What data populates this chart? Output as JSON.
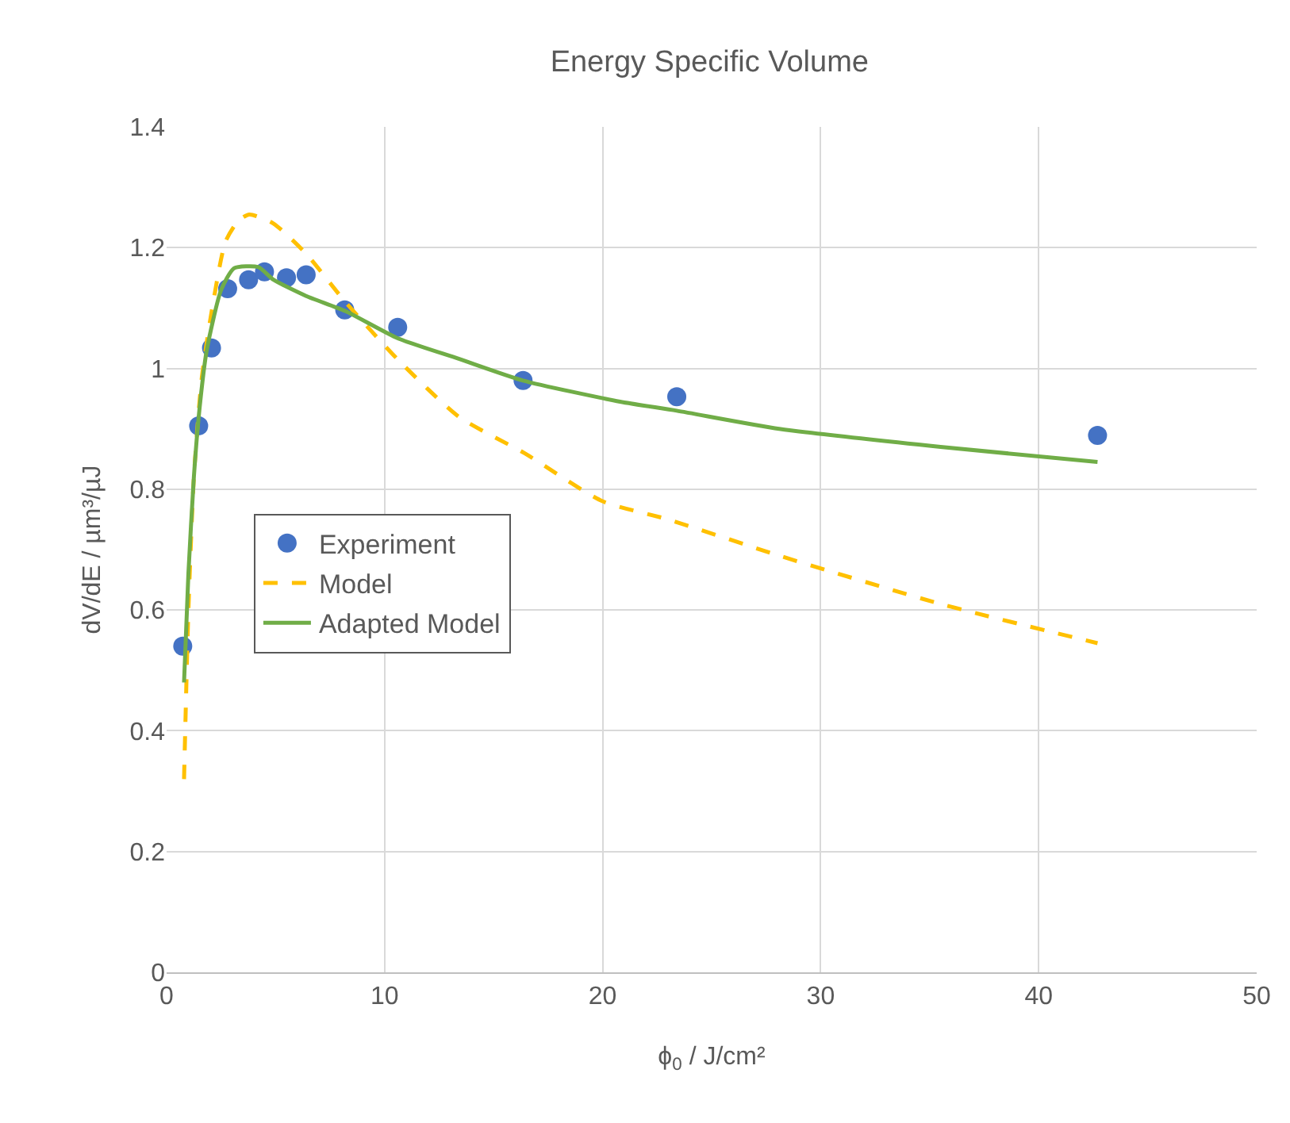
{
  "chart_data": {
    "type": "scatter",
    "title": "Energy Specific Volume",
    "xlabel": "ϕ$_{0}$ / J/cm²",
    "ylabel": "dV/dE / µm³/µJ",
    "xlim": [
      0,
      50
    ],
    "xticks": [
      0,
      10,
      20,
      30,
      40,
      50
    ],
    "ylim": [
      0,
      1.4
    ],
    "yticks": [
      0,
      0.2,
      0.4,
      0.6,
      0.8,
      1,
      1.2,
      1.4
    ],
    "grid": true,
    "legend": "left",
    "series": [
      {
        "name": "Experiment",
        "marker": "circle",
        "color": "#4472c4",
        "x": [
          0.74,
          1.47,
          2.06,
          2.8,
          3.76,
          4.49,
          5.5,
          6.4,
          8.17,
          10.6,
          16.35,
          23.4,
          42.7
        ],
        "values": [
          0.54,
          0.905,
          1.034,
          1.132,
          1.147,
          1.16,
          1.15,
          1.155,
          1.097,
          1.068,
          0.98,
          0.953,
          0.889
        ]
      },
      {
        "name": "Model",
        "type": "line",
        "line_style": "dashed",
        "color": "#ffc000",
        "x": [
          0.8,
          1.0,
          1.25,
          1.6,
          2.0,
          2.7,
          3.3,
          3.8,
          4.9,
          6.4,
          8.2,
          10.6,
          13.4,
          16.4,
          20,
          23,
          28.1,
          35.5,
          42.7
        ],
        "values": [
          0.32,
          0.6,
          0.82,
          0.98,
          1.08,
          1.21,
          1.245,
          1.255,
          1.24,
          1.19,
          1.11,
          1.015,
          0.92,
          0.86,
          0.78,
          0.75,
          0.69,
          0.61,
          0.545
        ]
      },
      {
        "name": "Adapted Model",
        "type": "line",
        "line_style": "solid",
        "color": "#70ad47",
        "x": [
          0.8,
          1.0,
          1.25,
          1.5,
          1.84,
          2.5,
          3.1,
          4.2,
          4.9,
          6.4,
          8.2,
          10.6,
          13.4,
          16.35,
          20.8,
          23.4,
          28.1,
          35.5,
          42.7
        ],
        "values": [
          0.48,
          0.66,
          0.82,
          0.93,
          1.03,
          1.13,
          1.166,
          1.168,
          1.147,
          1.12,
          1.095,
          1.05,
          1.016,
          0.98,
          0.945,
          0.93,
          0.9,
          0.87,
          0.845
        ]
      }
    ]
  }
}
